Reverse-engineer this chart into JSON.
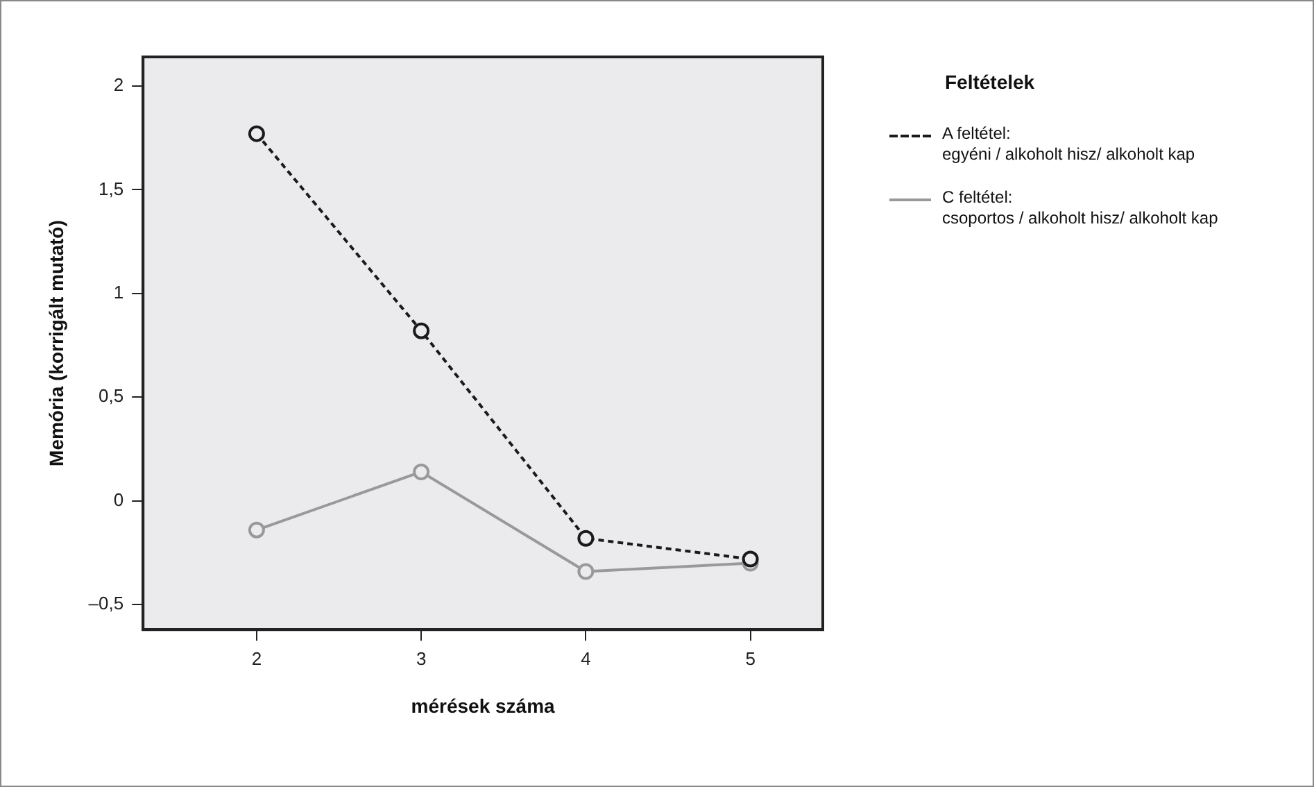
{
  "chart_data": {
    "type": "line",
    "xlabel": "mérések száma",
    "ylabel": "Memória (korrigált mutató)",
    "legend_title": "Feltételek",
    "legend": "right",
    "grid": false,
    "marker": "circle",
    "x": [
      2,
      3,
      4,
      5
    ],
    "xlim": [
      1.31,
      5.44
    ],
    "xticks": [
      2,
      3,
      4,
      5
    ],
    "ylim": [
      -0.62,
      2.14
    ],
    "yticks": [
      {
        "value": -0.5,
        "label": "–0,5"
      },
      0,
      {
        "value": 0.5,
        "label": "0,5"
      },
      1,
      {
        "value": 1.5,
        "label": "1,5"
      },
      2
    ],
    "series": [
      {
        "name": "A feltétel:\negyéni / alkoholt hisz/ alkoholt kap",
        "color": "#1a1a1a",
        "line_style": "dashed",
        "values": [
          1.77,
          0.82,
          -0.18,
          -0.28
        ]
      },
      {
        "name": "C feltétel:\ncsoportos / alkoholt hisz/ alkoholt kap",
        "color": "#999999",
        "line_style": "solid",
        "values": [
          -0.14,
          0.14,
          -0.34,
          -0.3
        ]
      }
    ]
  }
}
